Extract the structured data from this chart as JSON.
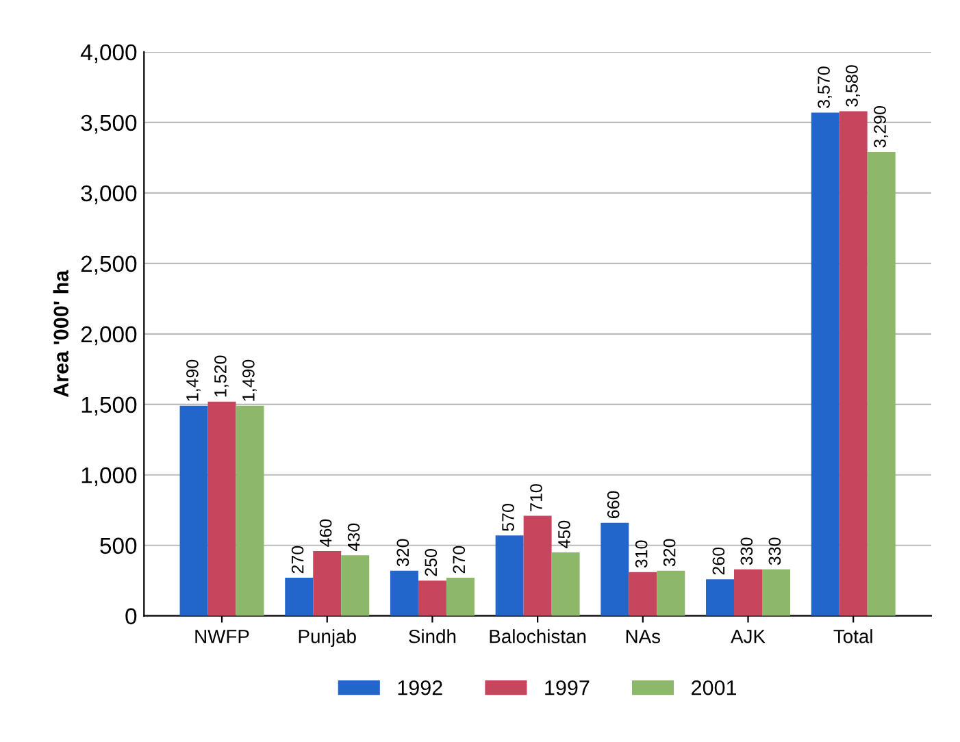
{
  "chart_data": {
    "type": "bar",
    "ylabel": "Area '000' ha",
    "categories": [
      "NWFP",
      "Punjab",
      "Sindh",
      "Balochistan",
      "NAs",
      "AJK",
      "Total"
    ],
    "series": [
      {
        "name": "1992",
        "color": "#2266cc",
        "values": [
          1490,
          270,
          320,
          570,
          660,
          260,
          3570
        ],
        "value_labels": [
          "1,490",
          "270",
          "320",
          "570",
          "660",
          "260",
          "3,570"
        ]
      },
      {
        "name": "1997",
        "color": "#c8455e",
        "values": [
          1520,
          460,
          250,
          710,
          310,
          330,
          3580
        ],
        "value_labels": [
          "1,520",
          "460",
          "250",
          "710",
          "310",
          "330",
          "3,580"
        ]
      },
      {
        "name": "2001",
        "color": "#8db86a",
        "values": [
          1490,
          430,
          270,
          450,
          320,
          330,
          3290
        ],
        "value_labels": [
          "1,490",
          "430",
          "270",
          "450",
          "320",
          "330",
          "3,290"
        ]
      }
    ],
    "ylim": [
      0,
      4000
    ],
    "yticks": [
      0,
      500,
      {
        "value": 1000,
        "label": "1,000"
      },
      {
        "value": 1500,
        "label": "1,500"
      },
      {
        "value": 2000,
        "label": "2,000"
      },
      {
        "value": 2500,
        "label": "2,500"
      },
      {
        "value": 3000,
        "label": "3,000"
      },
      {
        "value": 3500,
        "label": "3,500"
      },
      {
        "value": 4000,
        "label": "4,000"
      }
    ],
    "grid": "y",
    "legend": "bottom"
  }
}
